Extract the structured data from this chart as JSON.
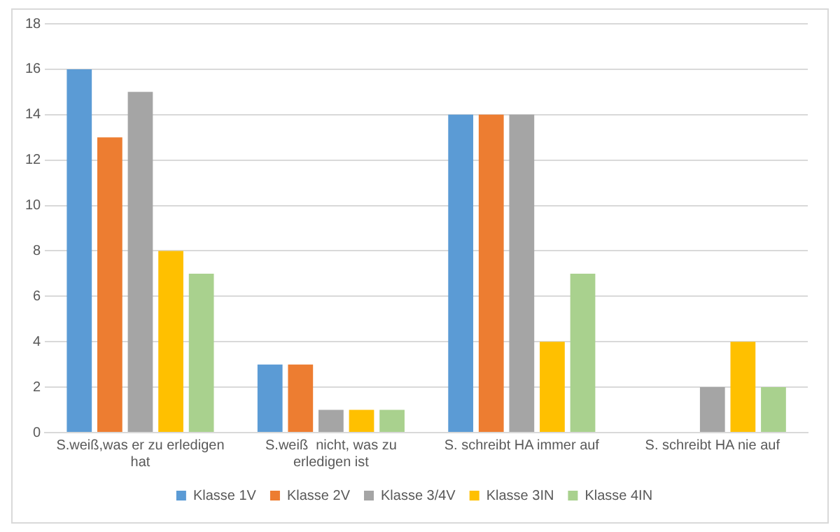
{
  "chart_data": {
    "type": "bar",
    "categories": [
      "S.weiß,was er zu erledigen hat",
      "S.weiß  nicht, was zu erledigen ist",
      "S. schreibt HA immer auf",
      "S. schreibt HA nie auf"
    ],
    "series": [
      {
        "name": "Klasse 1V",
        "color": "#5b9bd5",
        "values": [
          16,
          3,
          14,
          0
        ]
      },
      {
        "name": "Klasse 2V",
        "color": "#ed7d31",
        "values": [
          13,
          3,
          14,
          0
        ]
      },
      {
        "name": "Klasse 3/4V",
        "color": "#a5a5a5",
        "values": [
          15,
          1,
          14,
          2
        ]
      },
      {
        "name": "Klasse 3IN",
        "color": "#ffc000",
        "values": [
          8,
          1,
          4,
          4
        ]
      },
      {
        "name": "Klasse 4IN",
        "color": "#a9d18e",
        "values": [
          7,
          1,
          7,
          2
        ]
      }
    ],
    "ylim": [
      0,
      18
    ],
    "yticks": [
      0,
      2,
      4,
      6,
      8,
      10,
      12,
      14,
      16,
      18
    ],
    "grid": "y",
    "legend": "bottom"
  }
}
